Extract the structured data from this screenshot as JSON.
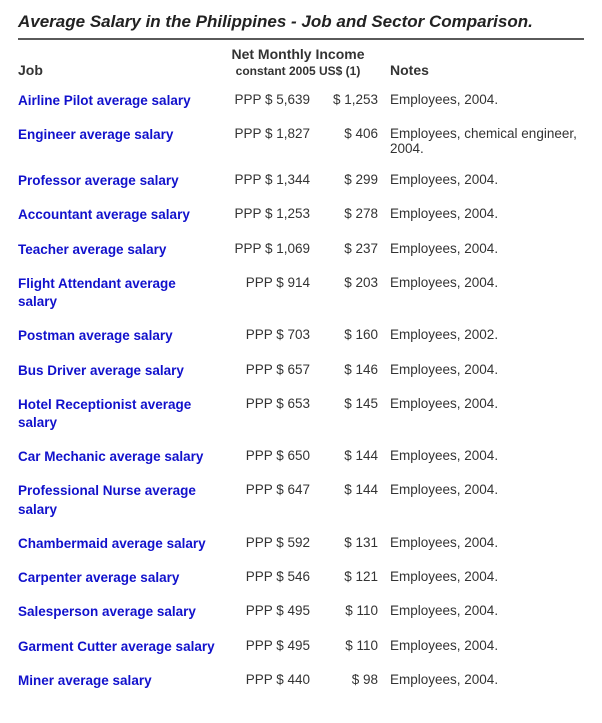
{
  "title": "Average Salary in the Philippines - Job and Sector Comparison.",
  "headers": {
    "job": "Job",
    "income_line1": "Net Monthly Income",
    "income_line2": "constant 2005 US$ (1)",
    "notes": "Notes"
  },
  "ppp_prefix": "PPP",
  "rows": [
    {
      "job": "Airline Pilot average salary",
      "ppp": "$ 5,639",
      "usd": "$ 1,253",
      "notes": "Employees, 2004."
    },
    {
      "job": "Engineer average salary",
      "ppp": "$ 1,827",
      "usd": "$ 406",
      "notes": "Employees, chemical engineer, 2004."
    },
    {
      "job": "Professor average salary",
      "ppp": "$ 1,344",
      "usd": "$ 299",
      "notes": "Employees, 2004."
    },
    {
      "job": "Accountant average salary",
      "ppp": "$ 1,253",
      "usd": "$ 278",
      "notes": "Employees, 2004."
    },
    {
      "job": "Teacher average salary",
      "ppp": "$ 1,069",
      "usd": "$ 237",
      "notes": "Employees, 2004."
    },
    {
      "job": "Flight Attendant average salary",
      "ppp": "$ 914",
      "usd": "$ 203",
      "notes": "Employees, 2004."
    },
    {
      "job": "Postman average salary",
      "ppp": "$ 703",
      "usd": "$ 160",
      "notes": "Employees, 2002."
    },
    {
      "job": "Bus Driver average salary",
      "ppp": "$ 657",
      "usd": "$ 146",
      "notes": "Employees, 2004."
    },
    {
      "job": "Hotel Receptionist average salary",
      "ppp": "$ 653",
      "usd": "$ 145",
      "notes": "Employees, 2004."
    },
    {
      "job": "Car Mechanic average salary",
      "ppp": "$ 650",
      "usd": "$ 144",
      "notes": "Employees, 2004."
    },
    {
      "job": "Professional Nurse average salary",
      "ppp": "$ 647",
      "usd": "$ 144",
      "notes": "Employees, 2004."
    },
    {
      "job": "Chambermaid average salary",
      "ppp": "$ 592",
      "usd": "$ 131",
      "notes": "Employees, 2004."
    },
    {
      "job": "Carpenter average salary",
      "ppp": "$ 546",
      "usd": "$ 121",
      "notes": "Employees, 2004."
    },
    {
      "job": "Salesperson average salary",
      "ppp": "$ 495",
      "usd": "$ 110",
      "notes": "Employees, 2004."
    },
    {
      "job": "Garment Cutter average salary",
      "ppp": "$ 495",
      "usd": "$ 110",
      "notes": "Employees, 2004."
    },
    {
      "job": "Miner average salary",
      "ppp": "$ 440",
      "usd": "$ 98",
      "notes": "Employees, 2004."
    }
  ]
}
